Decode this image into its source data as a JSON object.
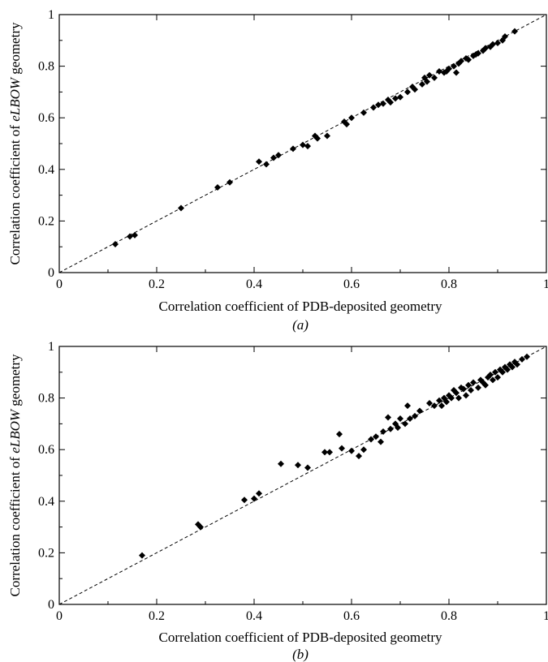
{
  "chart_data": [
    {
      "type": "scatter",
      "xlabel": "Correlation coefficient of PDB-deposited geometry",
      "ylabel_parts": [
        "Correlation coefficient of ",
        "eLBOW",
        " geometry"
      ],
      "panel_label": "(a)",
      "xlim": [
        0,
        1
      ],
      "ylim": [
        0,
        1
      ],
      "x_ticks": [
        "0",
        "0.2",
        "0.4",
        "0.6",
        "0.8",
        "1"
      ],
      "y_ticks": [
        "0",
        "0.2",
        "0.4",
        "0.6",
        "0.8",
        "1"
      ],
      "grid": false,
      "reference_line": "y = x (dashed)",
      "x": [
        0.115,
        0.145,
        0.155,
        0.25,
        0.325,
        0.35,
        0.41,
        0.425,
        0.44,
        0.45,
        0.48,
        0.5,
        0.51,
        0.525,
        0.53,
        0.55,
        0.585,
        0.59,
        0.6,
        0.625,
        0.645,
        0.655,
        0.665,
        0.675,
        0.68,
        0.69,
        0.7,
        0.715,
        0.725,
        0.73,
        0.745,
        0.75,
        0.755,
        0.76,
        0.77,
        0.78,
        0.79,
        0.795,
        0.8,
        0.81,
        0.815,
        0.82,
        0.825,
        0.835,
        0.84,
        0.85,
        0.855,
        0.86,
        0.87,
        0.875,
        0.885,
        0.89,
        0.9,
        0.91,
        0.915,
        0.935
      ],
      "y": [
        0.11,
        0.14,
        0.145,
        0.25,
        0.33,
        0.35,
        0.43,
        0.42,
        0.445,
        0.455,
        0.48,
        0.495,
        0.49,
        0.53,
        0.52,
        0.53,
        0.585,
        0.575,
        0.6,
        0.62,
        0.64,
        0.65,
        0.655,
        0.67,
        0.66,
        0.675,
        0.68,
        0.7,
        0.72,
        0.71,
        0.73,
        0.755,
        0.74,
        0.765,
        0.755,
        0.78,
        0.775,
        0.78,
        0.79,
        0.8,
        0.775,
        0.81,
        0.82,
        0.83,
        0.825,
        0.84,
        0.845,
        0.85,
        0.86,
        0.87,
        0.875,
        0.885,
        0.89,
        0.9,
        0.915,
        0.935
      ]
    },
    {
      "type": "scatter",
      "xlabel": "Correlation coefficient of PDB-deposited geometry",
      "ylabel_parts": [
        "Correlation coefficient of ",
        "eLBOW",
        " geometry"
      ],
      "panel_label": "(b)",
      "xlim": [
        0,
        1
      ],
      "ylim": [
        0,
        1
      ],
      "x_ticks": [
        "0",
        "0.2",
        "0.4",
        "0.6",
        "0.8",
        "1"
      ],
      "y_ticks": [
        "0",
        "0.2",
        "0.4",
        "0.6",
        "0.8",
        "1"
      ],
      "grid": false,
      "reference_line": "y = x (dashed)",
      "x": [
        0.17,
        0.285,
        0.29,
        0.38,
        0.4,
        0.41,
        0.455,
        0.49,
        0.51,
        0.545,
        0.555,
        0.575,
        0.58,
        0.6,
        0.615,
        0.625,
        0.64,
        0.65,
        0.66,
        0.665,
        0.675,
        0.68,
        0.69,
        0.695,
        0.7,
        0.71,
        0.715,
        0.72,
        0.73,
        0.74,
        0.76,
        0.77,
        0.78,
        0.785,
        0.79,
        0.795,
        0.8,
        0.805,
        0.81,
        0.815,
        0.82,
        0.825,
        0.83,
        0.835,
        0.84,
        0.845,
        0.85,
        0.86,
        0.865,
        0.87,
        0.875,
        0.88,
        0.885,
        0.89,
        0.895,
        0.9,
        0.905,
        0.91,
        0.915,
        0.92,
        0.925,
        0.93,
        0.935,
        0.94,
        0.95,
        0.96
      ],
      "y": [
        0.19,
        0.31,
        0.3,
        0.405,
        0.41,
        0.43,
        0.545,
        0.54,
        0.53,
        0.59,
        0.59,
        0.66,
        0.605,
        0.595,
        0.575,
        0.6,
        0.64,
        0.65,
        0.63,
        0.67,
        0.725,
        0.68,
        0.7,
        0.685,
        0.72,
        0.7,
        0.77,
        0.72,
        0.73,
        0.75,
        0.78,
        0.77,
        0.79,
        0.77,
        0.8,
        0.785,
        0.81,
        0.8,
        0.83,
        0.82,
        0.8,
        0.84,
        0.835,
        0.81,
        0.85,
        0.83,
        0.86,
        0.84,
        0.87,
        0.86,
        0.85,
        0.88,
        0.89,
        0.87,
        0.9,
        0.88,
        0.91,
        0.9,
        0.92,
        0.91,
        0.93,
        0.92,
        0.94,
        0.93,
        0.95,
        0.96
      ]
    }
  ]
}
